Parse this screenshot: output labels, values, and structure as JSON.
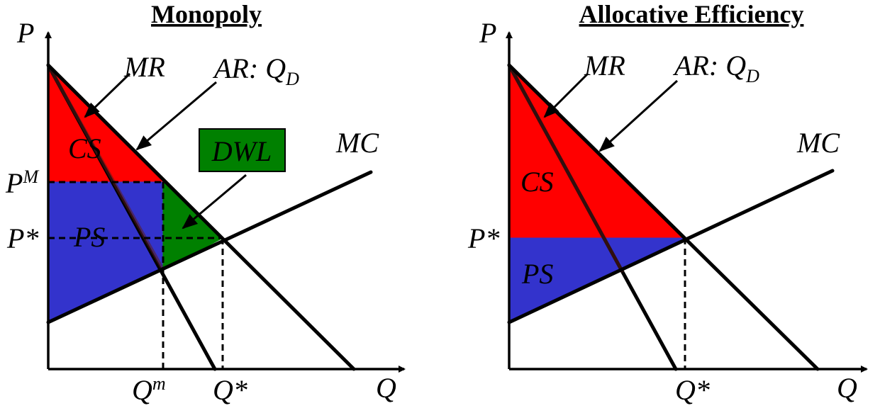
{
  "colors": {
    "consumer_surplus": "#ff0000",
    "producer_surplus": "#3333cc",
    "deadweight_loss": "#008000",
    "mr_line": "#5a1d1d"
  },
  "left_panel": {
    "title": "Monopoly",
    "y_axis_label": "P",
    "x_axis_label": "Q",
    "mr_label": "MR",
    "ar_label": "AR: Q",
    "ar_subscript": "D",
    "mc_label": "MC",
    "cs_label": "CS",
    "ps_label": "PS",
    "dwl_label": "DWL",
    "pm_label": "P",
    "pm_superscript": "M",
    "pstar_label": "P*",
    "qm_label": "Q",
    "qm_superscript": "m",
    "qstar_label": "Q*"
  },
  "right_panel": {
    "title": "Allocative Efficiency",
    "y_axis_label": "P",
    "x_axis_label": "Q",
    "mr_label": "MR",
    "ar_label": "AR: Q",
    "ar_subscript": "D",
    "mc_label": "MC",
    "cs_label": "CS",
    "ps_label": "PS",
    "pstar_label": "P*",
    "qstar_label": "Q*"
  }
}
